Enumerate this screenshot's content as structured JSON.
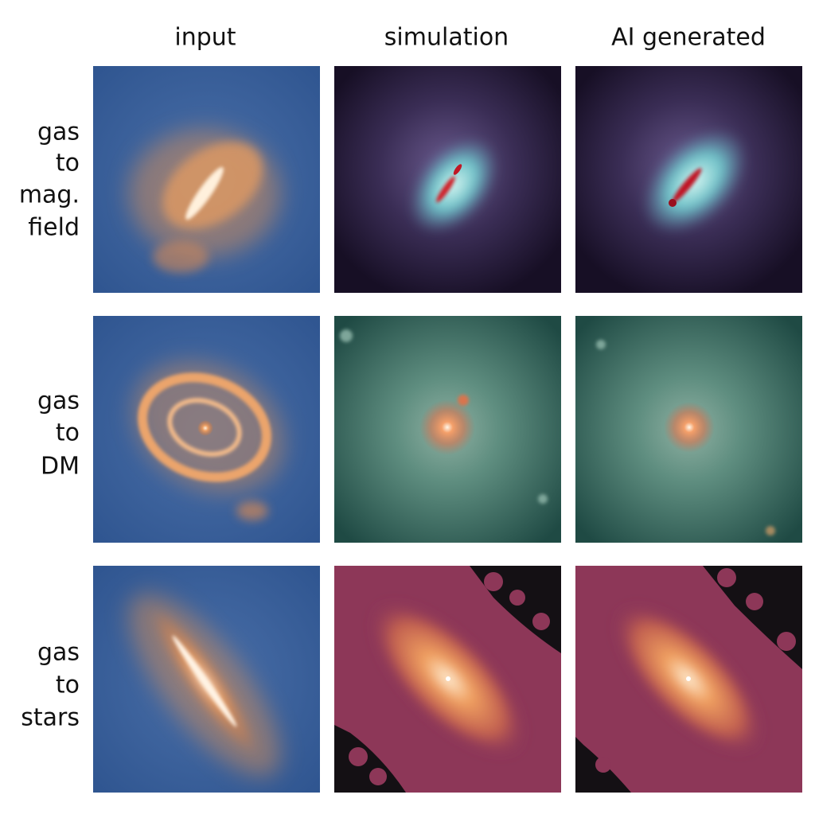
{
  "columns": [
    "input",
    "simulation",
    "AI generated"
  ],
  "rows": [
    {
      "lines": [
        "gas",
        "to",
        "mag.",
        "field"
      ]
    },
    {
      "lines": [
        "gas",
        "to",
        "DM"
      ]
    },
    {
      "lines": [
        "gas",
        "to",
        "stars"
      ]
    }
  ]
}
